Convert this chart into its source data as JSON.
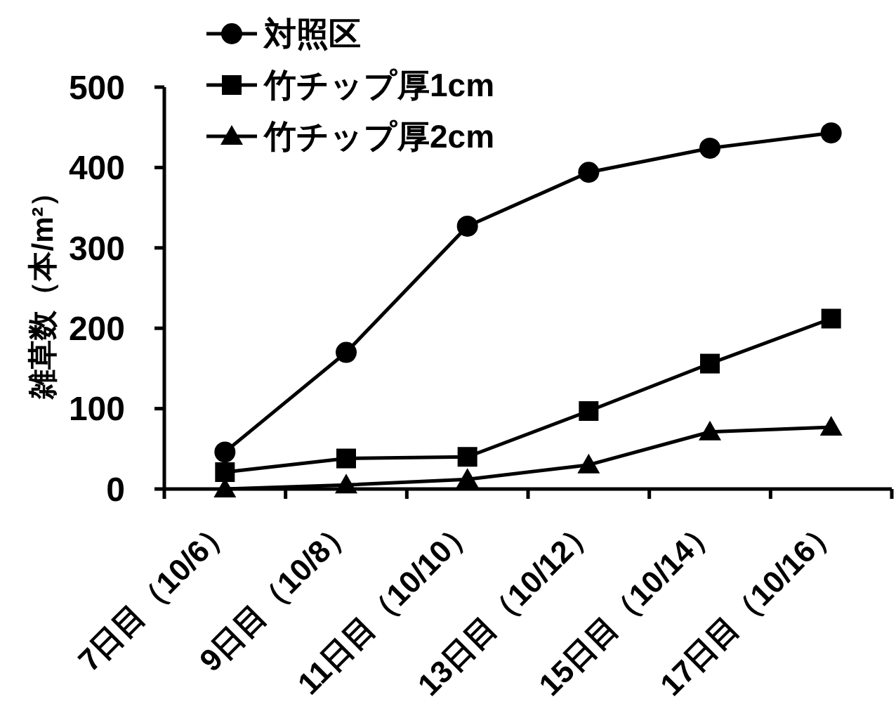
{
  "chart_data": {
    "type": "line",
    "ylabel": "雑草数（本/m²）",
    "categories": [
      "7日目（10/6）",
      "9日目（10/8）",
      "11日目（10/10）",
      "13日目（10/12）",
      "15日目（10/14）",
      "17日目（10/16）"
    ],
    "series": [
      {
        "name": "対照区",
        "color": "#000000",
        "marker": "circle",
        "values": [
          46,
          170,
          327,
          394,
          424,
          443
        ]
      },
      {
        "name": "竹チップ厚1cm",
        "color": "#000000",
        "marker": "square",
        "values": [
          21,
          38,
          40,
          97,
          156,
          212
        ]
      },
      {
        "name": "竹チップ厚2cm",
        "color": "#000000",
        "marker": "triangle",
        "values": [
          0,
          5,
          12,
          30,
          71,
          77
        ]
      }
    ],
    "ylim": [
      0,
      500
    ],
    "yticks": [
      0,
      100,
      200,
      300,
      400,
      500
    ],
    "legend": "top left",
    "line_style": "solid"
  }
}
